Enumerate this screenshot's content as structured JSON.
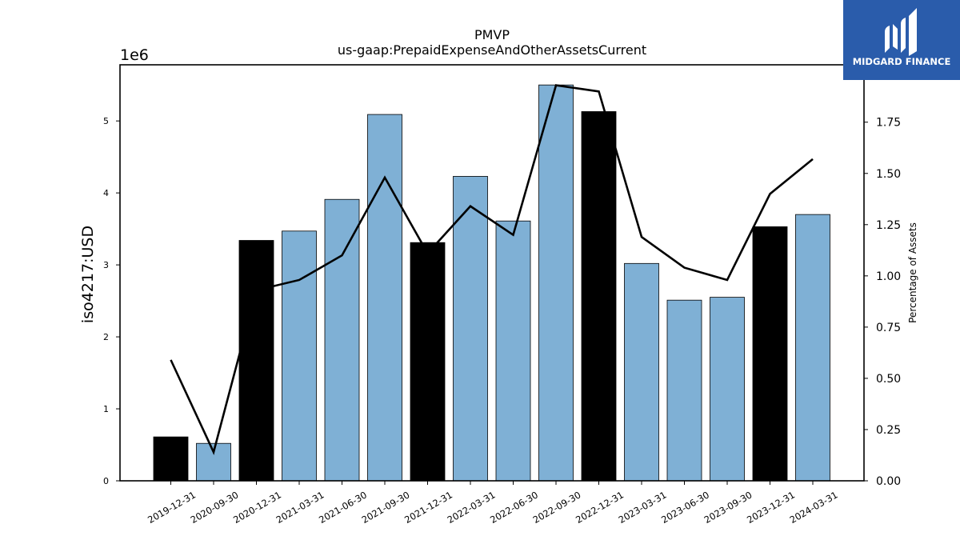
{
  "chart_data": {
    "type": "bar",
    "title": "PMVP",
    "subtitle": "us-gaap:PrepaidExpenseAndOtherAssetsCurrent",
    "ylabel": "iso4217:USD",
    "y_offset_label": "1e6",
    "y2label": "Percentage of Assets",
    "categories": [
      "2019-12-31",
      "2020-09-30",
      "2020-12-31",
      "2021-03-31",
      "2021-06-30",
      "2021-09-30",
      "2021-12-31",
      "2022-03-31",
      "2022-06-30",
      "2022-09-30",
      "2022-12-31",
      "2023-03-31",
      "2023-06-30",
      "2023-09-30",
      "2023-12-31",
      "2024-03-31"
    ],
    "values": [
      610000,
      520000,
      3340000,
      3470000,
      3910000,
      5090000,
      3310000,
      4230000,
      3610000,
      5500000,
      5130000,
      3020000,
      2510000,
      2550000,
      3530000,
      3700000
    ],
    "bar_is_annual": [
      true,
      false,
      true,
      false,
      false,
      false,
      true,
      false,
      false,
      false,
      true,
      false,
      false,
      false,
      true,
      false
    ],
    "line_series": {
      "name": "Percentage of Assets",
      "values": [
        0.59,
        0.14,
        0.93,
        0.98,
        1.1,
        1.48,
        1.11,
        1.34,
        1.2,
        1.93,
        1.9,
        1.19,
        1.04,
        0.98,
        1.4,
        1.57
      ]
    },
    "ylim": [
      0,
      5780000
    ],
    "y2lim": [
      0,
      2.03
    ],
    "yticks": [
      0,
      1,
      2,
      3,
      4,
      5
    ],
    "y2ticks": [
      "0.00",
      "0.25",
      "0.50",
      "0.75",
      "1.00",
      "1.25",
      "1.50",
      "1.75"
    ],
    "grid": false,
    "colors": {
      "quarterly": "#7fb0d5",
      "annual": "#000000",
      "line": "#000000"
    }
  },
  "logo": {
    "text": "MIDGARD FINANCE",
    "background": "#2a5cab",
    "foreground": "#ffffff"
  }
}
